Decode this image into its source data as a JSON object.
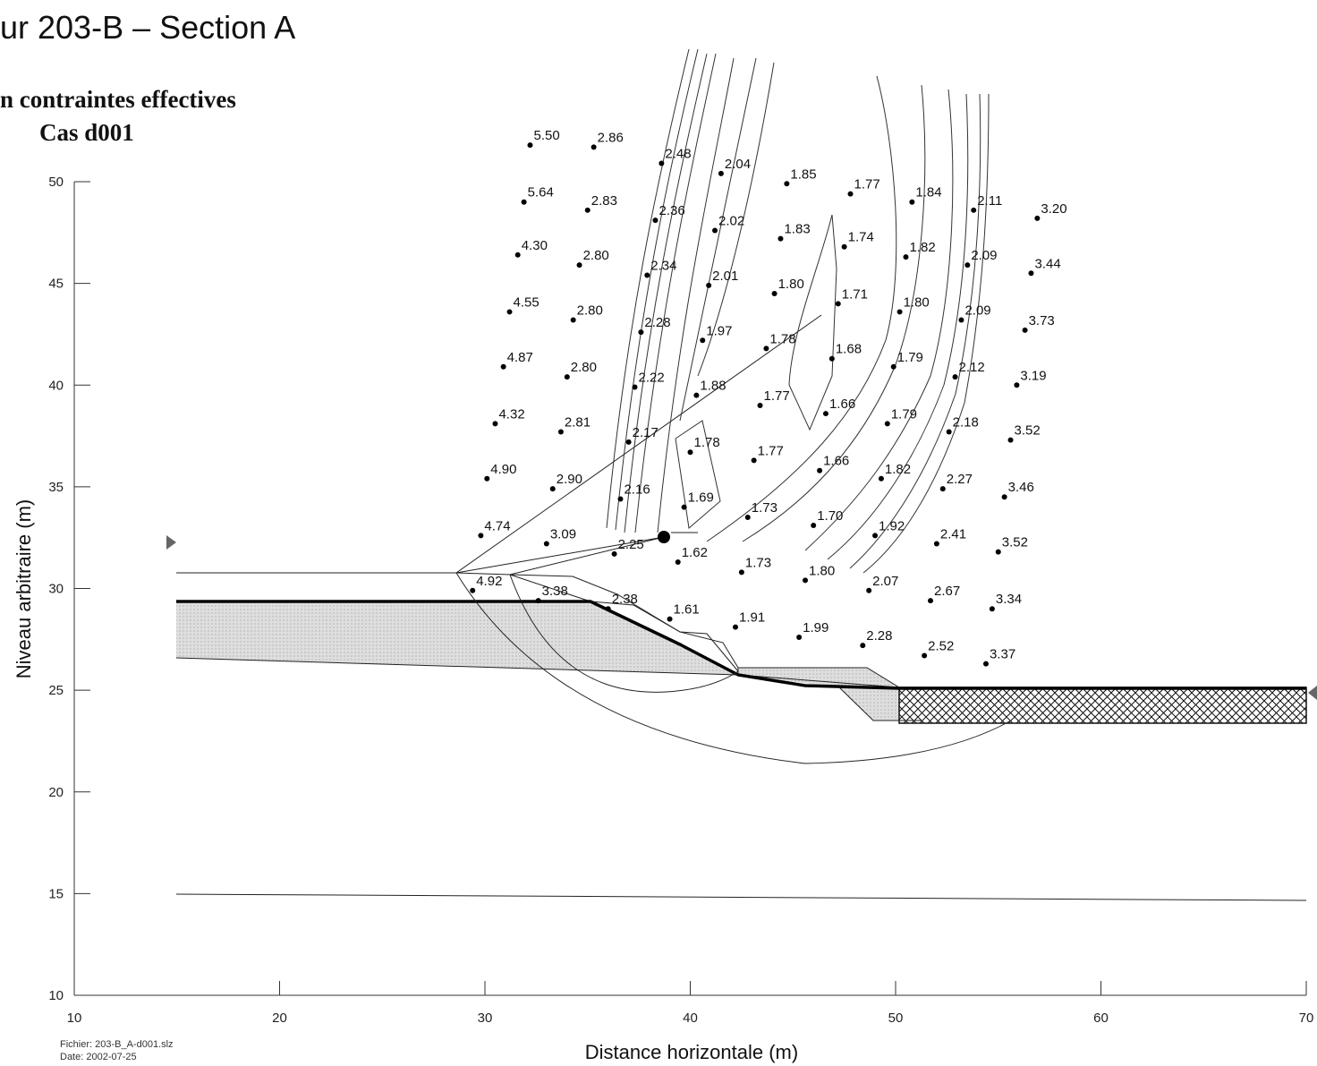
{
  "title": "ur 203-B – Section A",
  "subtitle_line1": "n contraintes effectives",
  "subtitle_line2": "Cas d001",
  "file_info": {
    "file": "Fichier: 203-B_A-d001.slz",
    "date": "Date: 2002-07-25"
  },
  "colors": {
    "axis": "#333333",
    "line": "#111111",
    "fill": "#d9d9d9",
    "hatch": "#222222"
  },
  "chart_data": {
    "type": "scatter",
    "title": "ur 203-B – Section A",
    "xlabel": "Distance horizontale (m)",
    "ylabel": "Niveau arbitraire (m)",
    "xlim": [
      10,
      70
    ],
    "ylim": [
      10,
      50
    ],
    "x_ticks": [
      10,
      20,
      30,
      40,
      50,
      60,
      70
    ],
    "y_ticks": [
      10,
      15,
      20,
      25,
      30,
      35,
      40,
      45,
      50
    ],
    "grid": false,
    "points": [
      {
        "x": 32.2,
        "y": 51.8,
        "label": "5.50"
      },
      {
        "x": 35.3,
        "y": 51.7,
        "label": "2.86"
      },
      {
        "x": 38.6,
        "y": 50.9,
        "label": "2.48"
      },
      {
        "x": 41.5,
        "y": 50.4,
        "label": "2.04"
      },
      {
        "x": 44.7,
        "y": 49.9,
        "label": "1.85"
      },
      {
        "x": 47.8,
        "y": 49.4,
        "label": "1.77"
      },
      {
        "x": 50.8,
        "y": 49.0,
        "label": "1.84"
      },
      {
        "x": 53.8,
        "y": 48.6,
        "label": "2.11"
      },
      {
        "x": 56.9,
        "y": 48.2,
        "label": "3.20"
      },
      {
        "x": 31.9,
        "y": 49.0,
        "label": "5.64"
      },
      {
        "x": 35.0,
        "y": 48.6,
        "label": "2.83"
      },
      {
        "x": 38.3,
        "y": 48.1,
        "label": "2.36"
      },
      {
        "x": 41.2,
        "y": 47.6,
        "label": "2.02"
      },
      {
        "x": 44.4,
        "y": 47.2,
        "label": "1.83"
      },
      {
        "x": 47.5,
        "y": 46.8,
        "label": "1.74"
      },
      {
        "x": 50.5,
        "y": 46.3,
        "label": "1.82"
      },
      {
        "x": 53.5,
        "y": 45.9,
        "label": "2.09"
      },
      {
        "x": 56.6,
        "y": 45.5,
        "label": "3.44"
      },
      {
        "x": 31.6,
        "y": 46.4,
        "label": "4.30"
      },
      {
        "x": 34.6,
        "y": 45.9,
        "label": "2.80"
      },
      {
        "x": 37.9,
        "y": 45.4,
        "label": "2.34"
      },
      {
        "x": 40.9,
        "y": 44.9,
        "label": "2.01"
      },
      {
        "x": 44.1,
        "y": 44.5,
        "label": "1.80"
      },
      {
        "x": 47.2,
        "y": 44.0,
        "label": "1.71"
      },
      {
        "x": 50.2,
        "y": 43.6,
        "label": "1.80"
      },
      {
        "x": 53.2,
        "y": 43.2,
        "label": "2.09"
      },
      {
        "x": 56.3,
        "y": 42.7,
        "label": "3.73"
      },
      {
        "x": 31.2,
        "y": 43.6,
        "label": "4.55"
      },
      {
        "x": 34.3,
        "y": 43.2,
        "label": "2.80"
      },
      {
        "x": 37.6,
        "y": 42.6,
        "label": "2.28"
      },
      {
        "x": 40.6,
        "y": 42.2,
        "label": "1.97"
      },
      {
        "x": 43.7,
        "y": 41.8,
        "label": "1.78"
      },
      {
        "x": 46.9,
        "y": 41.3,
        "label": "1.68"
      },
      {
        "x": 49.9,
        "y": 40.9,
        "label": "1.79"
      },
      {
        "x": 52.9,
        "y": 40.4,
        "label": "2.12"
      },
      {
        "x": 55.9,
        "y": 40.0,
        "label": "3.19"
      },
      {
        "x": 30.9,
        "y": 40.9,
        "label": "4.87"
      },
      {
        "x": 34.0,
        "y": 40.4,
        "label": "2.80"
      },
      {
        "x": 37.3,
        "y": 39.9,
        "label": "2.22"
      },
      {
        "x": 40.3,
        "y": 39.5,
        "label": "1.88"
      },
      {
        "x": 43.4,
        "y": 39.0,
        "label": "1.77"
      },
      {
        "x": 46.6,
        "y": 38.6,
        "label": "1.66"
      },
      {
        "x": 49.6,
        "y": 38.1,
        "label": "1.79"
      },
      {
        "x": 52.6,
        "y": 37.7,
        "label": "2.18"
      },
      {
        "x": 55.6,
        "y": 37.3,
        "label": "3.52"
      },
      {
        "x": 30.5,
        "y": 38.1,
        "label": "4.32"
      },
      {
        "x": 33.7,
        "y": 37.7,
        "label": "2.81"
      },
      {
        "x": 37.0,
        "y": 37.2,
        "label": "2.17"
      },
      {
        "x": 40.0,
        "y": 36.7,
        "label": "1.78"
      },
      {
        "x": 43.1,
        "y": 36.3,
        "label": "1.77"
      },
      {
        "x": 46.3,
        "y": 35.8,
        "label": "1.66"
      },
      {
        "x": 49.3,
        "y": 35.4,
        "label": "1.82"
      },
      {
        "x": 52.3,
        "y": 34.9,
        "label": "2.27"
      },
      {
        "x": 55.3,
        "y": 34.5,
        "label": "3.46"
      },
      {
        "x": 30.1,
        "y": 35.4,
        "label": "4.90"
      },
      {
        "x": 33.3,
        "y": 34.9,
        "label": "2.90"
      },
      {
        "x": 36.6,
        "y": 34.4,
        "label": "2.16"
      },
      {
        "x": 39.7,
        "y": 34.0,
        "label": "1.69"
      },
      {
        "x": 42.8,
        "y": 33.5,
        "label": "1.73"
      },
      {
        "x": 46.0,
        "y": 33.1,
        "label": "1.70"
      },
      {
        "x": 49.0,
        "y": 32.6,
        "label": "1.92"
      },
      {
        "x": 52.0,
        "y": 32.2,
        "label": "2.41"
      },
      {
        "x": 55.0,
        "y": 31.8,
        "label": "3.52"
      },
      {
        "x": 29.8,
        "y": 32.6,
        "label": "4.74"
      },
      {
        "x": 33.0,
        "y": 32.2,
        "label": "3.09"
      },
      {
        "x": 36.3,
        "y": 31.7,
        "label": "2.25"
      },
      {
        "x": 39.4,
        "y": 31.3,
        "label": "1.62"
      },
      {
        "x": 42.5,
        "y": 30.8,
        "label": "1.73"
      },
      {
        "x": 45.6,
        "y": 30.4,
        "label": "1.80"
      },
      {
        "x": 48.7,
        "y": 29.9,
        "label": "2.07"
      },
      {
        "x": 51.7,
        "y": 29.4,
        "label": "2.67"
      },
      {
        "x": 54.7,
        "y": 29.0,
        "label": "3.34"
      },
      {
        "x": 29.4,
        "y": 29.9,
        "label": "4.92"
      },
      {
        "x": 32.6,
        "y": 29.4,
        "label": "3.38"
      },
      {
        "x": 36.0,
        "y": 29.0,
        "label": "2.38"
      },
      {
        "x": 39.0,
        "y": 28.5,
        "label": "1.61"
      },
      {
        "x": 42.2,
        "y": 28.1,
        "label": "1.91"
      },
      {
        "x": 45.3,
        "y": 27.6,
        "label": "1.99"
      },
      {
        "x": 48.4,
        "y": 27.2,
        "label": "2.28"
      },
      {
        "x": 51.4,
        "y": 26.7,
        "label": "2.52"
      },
      {
        "x": 54.4,
        "y": 26.3,
        "label": "3.37"
      }
    ]
  }
}
